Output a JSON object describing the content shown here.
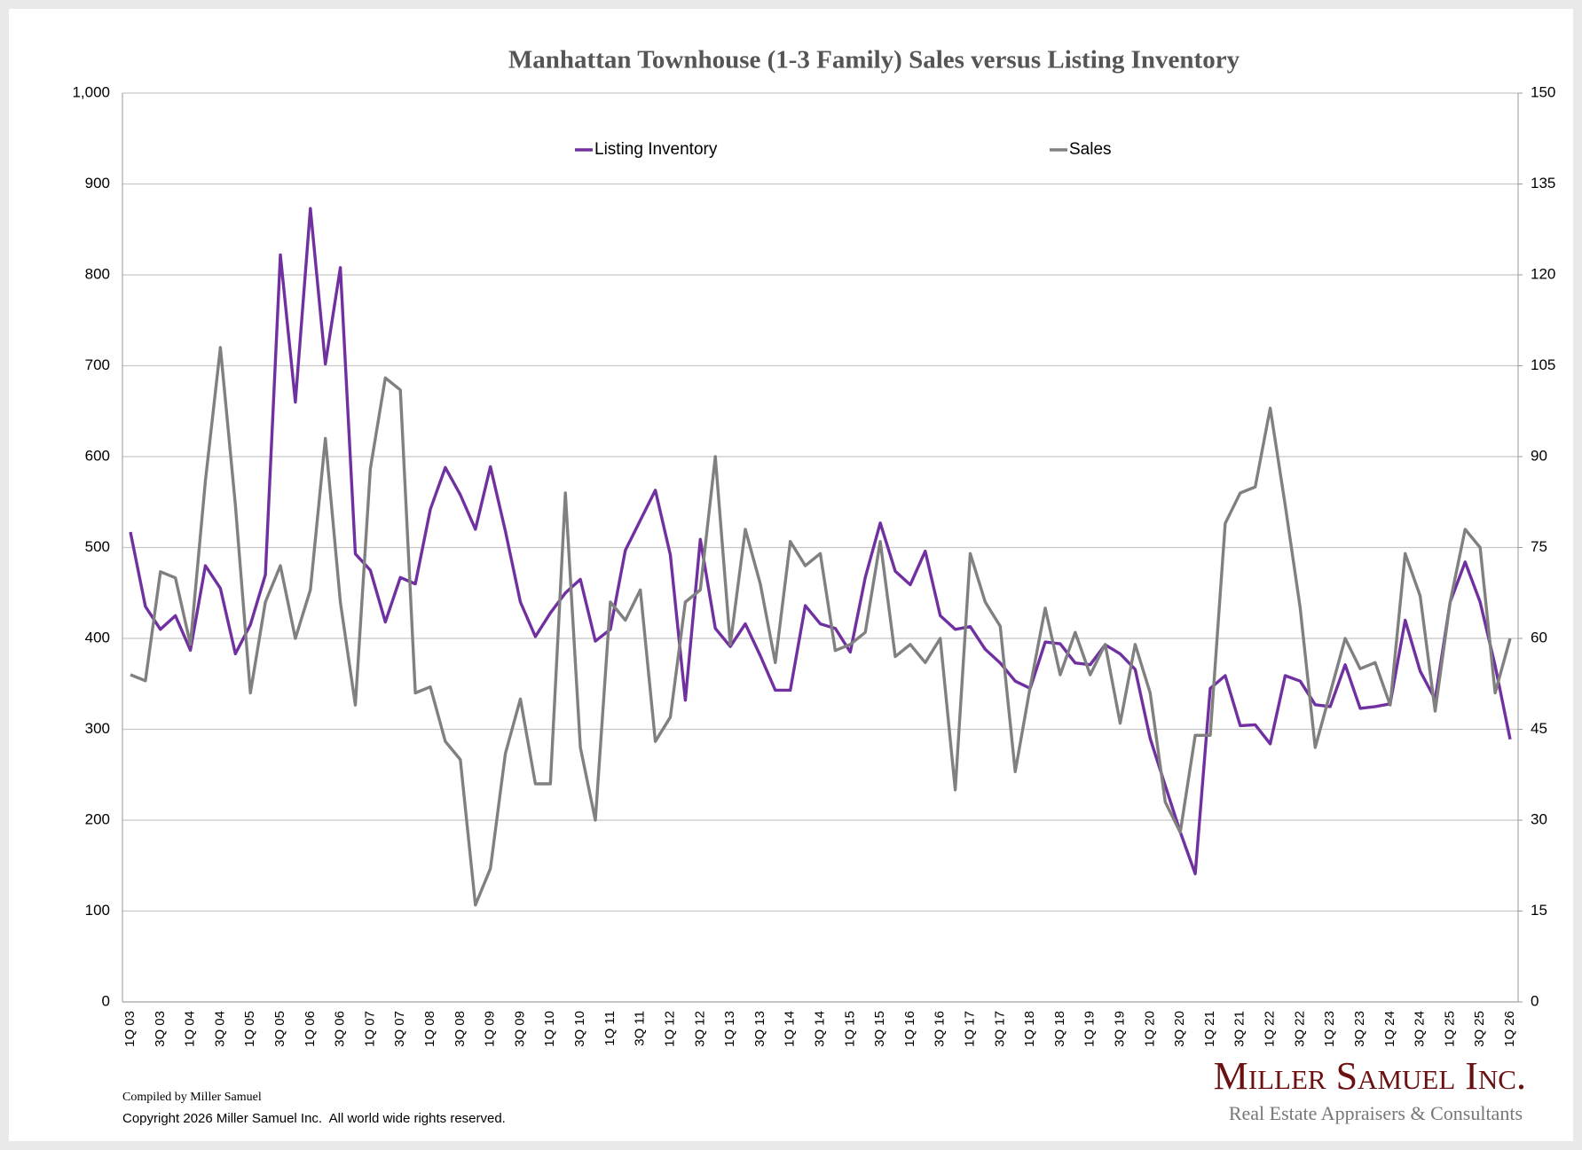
{
  "chart_data": {
    "type": "line",
    "title": "Manhattan Townhouse (1-3 Family) Sales versus Listing Inventory",
    "categories": [
      "1Q 03",
      null,
      "3Q 03",
      null,
      "1Q 04",
      null,
      "3Q 04",
      null,
      "1Q 05",
      null,
      "3Q 05",
      null,
      "1Q 06",
      null,
      "3Q 06",
      null,
      "1Q 07",
      null,
      "3Q 07",
      null,
      "1Q 08",
      null,
      "3Q 08",
      null,
      "1Q 09",
      null,
      "3Q 09",
      null,
      "1Q 10",
      null,
      "3Q 10",
      null,
      "1Q 11",
      null,
      "3Q 11",
      null,
      "1Q 12",
      null,
      "3Q 12",
      null,
      "1Q 13",
      null,
      "3Q 13",
      null,
      "1Q 14",
      null,
      "3Q 14",
      null,
      "1Q 15",
      null,
      "3Q 15",
      null,
      "1Q 16",
      null,
      "3Q 16",
      null,
      "1Q 17",
      null,
      "3Q 17",
      null,
      "1Q 18",
      null,
      "3Q 18",
      null,
      "1Q 19",
      null,
      "3Q 19",
      null,
      "1Q 20",
      null,
      "3Q 20",
      null,
      "1Q 21",
      null,
      "3Q 21",
      null,
      "1Q 22",
      null,
      "3Q 22",
      null,
      "1Q 23",
      null,
      "3Q 23",
      null,
      "1Q 24",
      null,
      "3Q 24",
      null,
      "1Q 25",
      null,
      "3Q 25",
      null,
      "1Q 26"
    ],
    "series": [
      {
        "name": "Listing Inventory",
        "color": "#7030a0",
        "axis": "y",
        "values": [
          517,
          435,
          410,
          425,
          387,
          480,
          455,
          383,
          415,
          470,
          822,
          660,
          873,
          702,
          808,
          493,
          475,
          418,
          467,
          460,
          542,
          588,
          558,
          520,
          589,
          518,
          440,
          402,
          428,
          450,
          465,
          397,
          410,
          497,
          530,
          563,
          492,
          332,
          509,
          411,
          391,
          416,
          381,
          343,
          343,
          436,
          416,
          411,
          385,
          467,
          527,
          474,
          459,
          496,
          425,
          410,
          413,
          388,
          373,
          353,
          345,
          396,
          394,
          373,
          371,
          393,
          383,
          366,
          290,
          238,
          187,
          141,
          345,
          359,
          304,
          305,
          284,
          359,
          353,
          327,
          325,
          371,
          323,
          325,
          328,
          420,
          364,
          333,
          440,
          484,
          440,
          370,
          289
        ]
      },
      {
        "name": "Sales",
        "color": "#808080",
        "axis": "y2",
        "values": [
          54,
          53,
          71,
          70,
          59,
          86,
          108,
          82,
          51,
          66,
          72,
          60,
          68,
          93,
          66,
          49,
          88,
          103,
          101,
          51,
          52,
          43,
          40,
          16,
          22,
          41,
          50,
          36,
          36,
          84,
          42,
          30,
          66,
          63,
          68,
          43,
          47,
          66,
          68,
          90,
          59,
          78,
          69,
          56,
          76,
          72,
          74,
          58,
          59,
          61,
          76,
          57,
          59,
          56,
          60,
          35,
          74,
          66,
          62,
          38,
          52,
          65,
          54,
          61,
          54,
          59,
          46,
          59,
          51,
          33,
          28,
          44,
          44,
          79,
          84,
          85,
          98,
          82,
          65,
          42,
          51,
          60,
          55,
          56,
          49,
          74,
          67,
          48,
          66,
          78,
          75,
          51,
          60
        ]
      }
    ],
    "ylim": [
      0,
      1000
    ],
    "yticks": [
      0,
      100,
      200,
      300,
      400,
      500,
      600,
      700,
      800,
      900,
      {
        "value": 1000,
        "label": "1,000"
      }
    ],
    "y2lim": [
      0,
      150
    ],
    "y2ticks": [
      0,
      15,
      30,
      45,
      60,
      75,
      90,
      105,
      120,
      135,
      150
    ],
    "grid": true,
    "legend": "top",
    "footer": {
      "compiled": "Compiled by Miller Samuel",
      "copyright": "Copyright 2026 Miller Samuel Inc.  All world wide rights reserved.",
      "logo": "Miller Samuel Inc.",
      "tagline": "Real Estate Appraisers & Consultants"
    }
  }
}
